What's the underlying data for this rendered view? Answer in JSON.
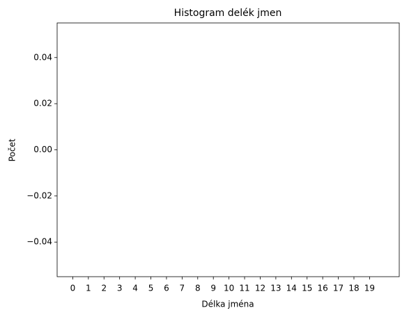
{
  "chart_data": {
    "type": "histogram",
    "title": "Histogram delék jmen",
    "x_label": "Délka jména",
    "y_label": "Počet",
    "xlim": [
      -1,
      20.9
    ],
    "xticks": [
      0,
      1,
      2,
      3,
      4,
      5,
      6,
      7,
      8,
      9,
      10,
      11,
      12,
      13,
      14,
      15,
      16,
      17,
      18,
      19
    ],
    "ylim": [
      -0.055,
      0.055
    ],
    "yticks": [
      {
        "value": -0.04,
        "label": "−0.04"
      },
      {
        "value": -0.02,
        "label": "−0.02"
      },
      {
        "value": 0,
        "label": "0.00"
      },
      0.02,
      0.04
    ],
    "grid": false
  }
}
